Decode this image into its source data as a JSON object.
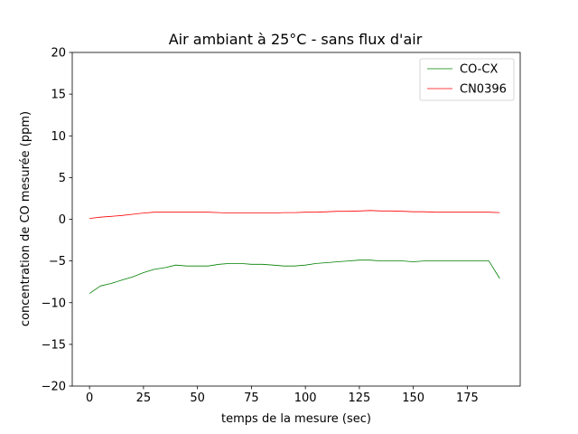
{
  "chart_data": {
    "type": "line",
    "title": "Air ambiant à 25°C - sans flux d'air",
    "xlabel": "temps de la mesure (sec)",
    "ylabel": "concentration de CO mesurée (ppm)",
    "xlim": [
      -8,
      199.5
    ],
    "ylim": [
      -20,
      20
    ],
    "xticks": [
      0,
      25,
      50,
      75,
      100,
      125,
      150,
      175
    ],
    "yticks": [
      -20,
      -15,
      -10,
      -5,
      0,
      5,
      10,
      15,
      20
    ],
    "grid": false,
    "legend_position": "top-right",
    "series": [
      {
        "name": "CO-CX",
        "color": "#008000",
        "x": [
          0,
          5,
          10,
          15,
          20,
          25,
          30,
          35,
          40,
          45,
          50,
          55,
          60,
          65,
          70,
          75,
          80,
          85,
          90,
          95,
          100,
          105,
          110,
          115,
          120,
          125,
          130,
          135,
          140,
          145,
          150,
          155,
          160,
          165,
          170,
          175,
          180,
          185,
          190
        ],
        "y": [
          -8.9,
          -8.0,
          -7.7,
          -7.3,
          -6.9,
          -6.4,
          -6.0,
          -5.8,
          -5.5,
          -5.6,
          -5.6,
          -5.6,
          -5.4,
          -5.3,
          -5.3,
          -5.4,
          -5.4,
          -5.5,
          -5.6,
          -5.6,
          -5.5,
          -5.3,
          -5.2,
          -5.1,
          -5.0,
          -4.9,
          -4.9,
          -5.0,
          -5.0,
          -5.0,
          -5.1,
          -5.0,
          -5.0,
          -5.0,
          -5.0,
          -5.0,
          -5.0,
          -5.0,
          -7.1
        ]
      },
      {
        "name": "CN0396",
        "color": "#ff0000",
        "x": [
          0,
          5,
          10,
          15,
          20,
          25,
          30,
          35,
          40,
          45,
          50,
          55,
          60,
          65,
          70,
          75,
          80,
          85,
          90,
          95,
          100,
          105,
          110,
          115,
          120,
          125,
          130,
          135,
          140,
          145,
          150,
          155,
          160,
          165,
          170,
          175,
          180,
          185,
          190
        ],
        "y": [
          0.1,
          0.25,
          0.35,
          0.45,
          0.6,
          0.75,
          0.85,
          0.85,
          0.85,
          0.85,
          0.85,
          0.85,
          0.8,
          0.75,
          0.75,
          0.75,
          0.75,
          0.75,
          0.8,
          0.8,
          0.85,
          0.85,
          0.9,
          0.95,
          0.95,
          1.0,
          1.05,
          1.0,
          1.0,
          0.95,
          0.9,
          0.9,
          0.85,
          0.85,
          0.85,
          0.85,
          0.85,
          0.85,
          0.8
        ]
      }
    ]
  }
}
